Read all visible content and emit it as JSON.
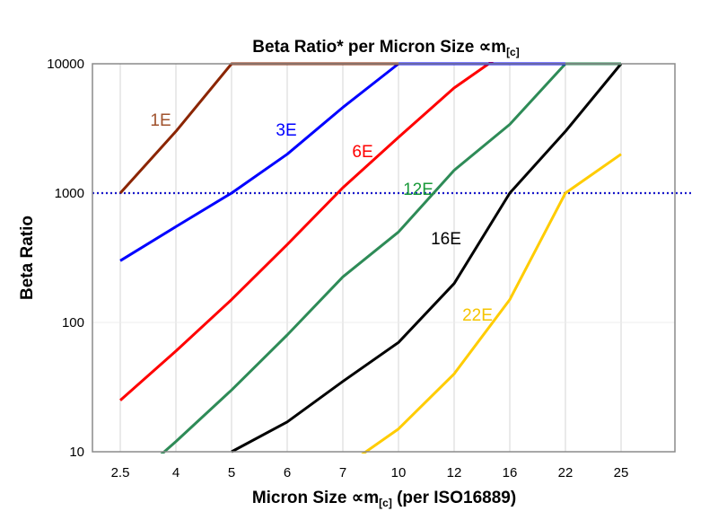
{
  "chart_data": {
    "type": "line",
    "title": {
      "main": "Beta Ratio* per Micron Size ",
      "unit": "∝m",
      "unit_sub": "[c]"
    },
    "xlabel": {
      "pre": "Micron Size ",
      "unit": "∝m",
      "unit_sub": "[c]",
      "post": " (per ISO16889)"
    },
    "ylabel": "Beta Ratio",
    "categories": [
      "2.5",
      "4",
      "5",
      "6",
      "7",
      "10",
      "12",
      "16",
      "22",
      "25"
    ],
    "y_scale": "log",
    "ylim": [
      10,
      10000
    ],
    "y_ticks": [
      "10",
      "100",
      "1000",
      "10000"
    ],
    "grid": {
      "vertical": true,
      "horizontal": true
    },
    "reference_line": {
      "value": 1000,
      "style": "dotted",
      "color": "#1a1acc"
    },
    "series": [
      {
        "name": "22E",
        "color": "#ffcc00",
        "label_color": "#f5c400",
        "values": [
          null,
          null,
          null,
          null,
          7.5,
          15,
          40,
          150,
          1000,
          2000
        ]
      },
      {
        "name": "16E",
        "color": "#000000",
        "label_color": "#000000",
        "values": [
          null,
          null,
          10,
          17,
          35,
          70,
          200,
          1000,
          3000,
          10000
        ]
      },
      {
        "name": "12E",
        "color": "#2e8b57",
        "label_color": "#1a9a3a",
        "values": [
          5,
          12,
          30,
          80,
          225,
          500,
          1500,
          3400,
          10000,
          10000
        ]
      },
      {
        "name": "6E",
        "color": "#ff0000",
        "label_color": "#ff0000",
        "values": [
          25,
          60,
          150,
          400,
          1100,
          2700,
          6500,
          13000,
          null,
          null
        ]
      },
      {
        "name": "3E",
        "color": "#0000ff",
        "label_color": "#0000ff",
        "values": [
          300,
          550,
          1000,
          2000,
          4600,
          10000,
          10000,
          10000,
          10000,
          null
        ]
      },
      {
        "name": "1E",
        "color": "#8b2500",
        "label_color": "#a0522d",
        "values": [
          1000,
          3000,
          10000,
          10000,
          10000,
          10000,
          null,
          null,
          null,
          null
        ]
      }
    ]
  }
}
